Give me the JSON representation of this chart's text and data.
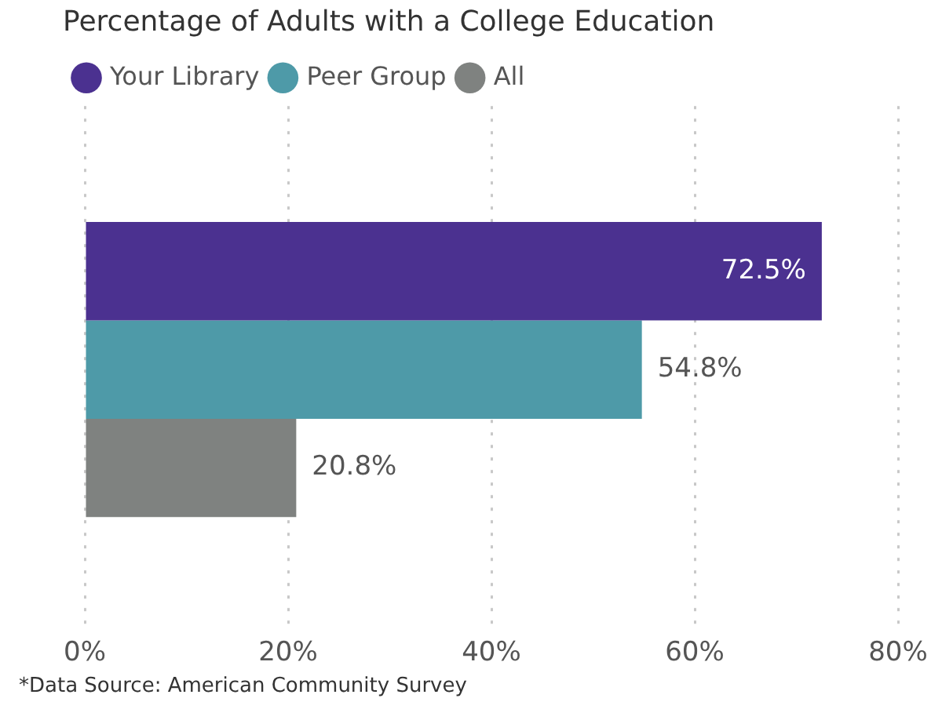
{
  "chart_data": {
    "type": "bar",
    "orientation": "horizontal",
    "title": "Percentage of Adults with a College Education",
    "categories": [
      null
    ],
    "series": [
      {
        "name": "Your Library",
        "color": "#4b3190",
        "values": [
          72.5
        ],
        "value_labels": [
          "72.5%"
        ]
      },
      {
        "name": "Peer Group",
        "color": "#4e9aa8",
        "values": [
          54.8
        ],
        "value_labels": [
          "54.8%"
        ]
      },
      {
        "name": "All",
        "color": "#7f8280",
        "values": [
          20.8
        ],
        "value_labels": [
          "20.8%"
        ]
      }
    ],
    "xlim": [
      0,
      80
    ],
    "xticks": [
      {
        "value": 0,
        "label": "0%"
      },
      {
        "value": 20,
        "label": "20%"
      },
      {
        "value": 40,
        "label": "40%"
      },
      {
        "value": 60,
        "label": "60%"
      },
      {
        "value": 80,
        "label": "80%"
      }
    ],
    "grid": "x",
    "legend": "top left",
    "annotations": [
      "*Data Source: American Community Survey"
    ]
  }
}
